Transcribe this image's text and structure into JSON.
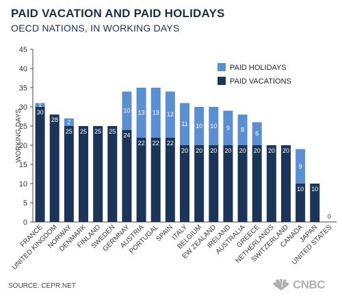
{
  "header": {
    "title": "PAID VACATION AND PAID HOLIDAYS",
    "subtitle": "OECD NATIONS, IN WORKING DAYS"
  },
  "footer": {
    "source": "SOURCE: CEPR.NET",
    "logo_text": "CNBC"
  },
  "colors": {
    "vacations": "#1b3559",
    "holidays": "#5b8fd1",
    "background": "#ffffff",
    "axis": "#444444"
  },
  "chart_data": {
    "type": "bar",
    "stacked": true,
    "categories": [
      "FRANCE",
      "UNITED KINGDOM",
      "NORWAY",
      "DENMARK",
      "FINLAND",
      "SWEDEN",
      "GERMNAY",
      "AUSTRIA",
      "PORTUGAL",
      "SPAIN",
      "ITALY",
      "BELGIUM",
      "EW ZEALAND",
      "IRELAND",
      "AUSTRALIA",
      "GREECE",
      "NETHERLANDS",
      "SWITZERLAND",
      "CANADA",
      "JAPAN",
      "UNITED STATES"
    ],
    "series": [
      {
        "name": "PAID VACATIONS",
        "values": [
          30,
          28,
          25,
          25,
          25,
          25,
          24,
          22,
          22,
          22,
          20,
          20,
          20,
          20,
          20,
          20,
          20,
          20,
          10,
          10,
          0
        ]
      },
      {
        "name": "PAID HOLIDAYS",
        "values": [
          1,
          0,
          2,
          0,
          0,
          0,
          10,
          13,
          13,
          12,
          11,
          10,
          10,
          9,
          8,
          6,
          0,
          0,
          9,
          0,
          0
        ]
      }
    ],
    "vacation_labels": [
      "30",
      "28",
      "25",
      "25",
      "25",
      "25",
      "24",
      "22",
      "22",
      "22",
      "20",
      "20",
      "20",
      "20",
      "20",
      "20",
      "20",
      "20",
      "10",
      "10",
      "0"
    ],
    "holiday_labels": [
      "1",
      "",
      "2",
      "",
      "",
      "",
      "10",
      "13",
      "13",
      "12",
      "11",
      "10",
      "10",
      "9",
      "8",
      "6",
      "",
      "",
      "9",
      "",
      ""
    ],
    "ylabel": "WORKING DAYS",
    "xlabel": "",
    "ylim": [
      0,
      45
    ],
    "yticks": [
      "0",
      "5",
      "10",
      "15",
      "20",
      "25",
      "30",
      "35",
      "40",
      "45"
    ],
    "legend": {
      "position": "top-right",
      "entries": [
        "PAID HOLIDAYS",
        "PAID VACATIONS"
      ]
    },
    "grid": false
  }
}
